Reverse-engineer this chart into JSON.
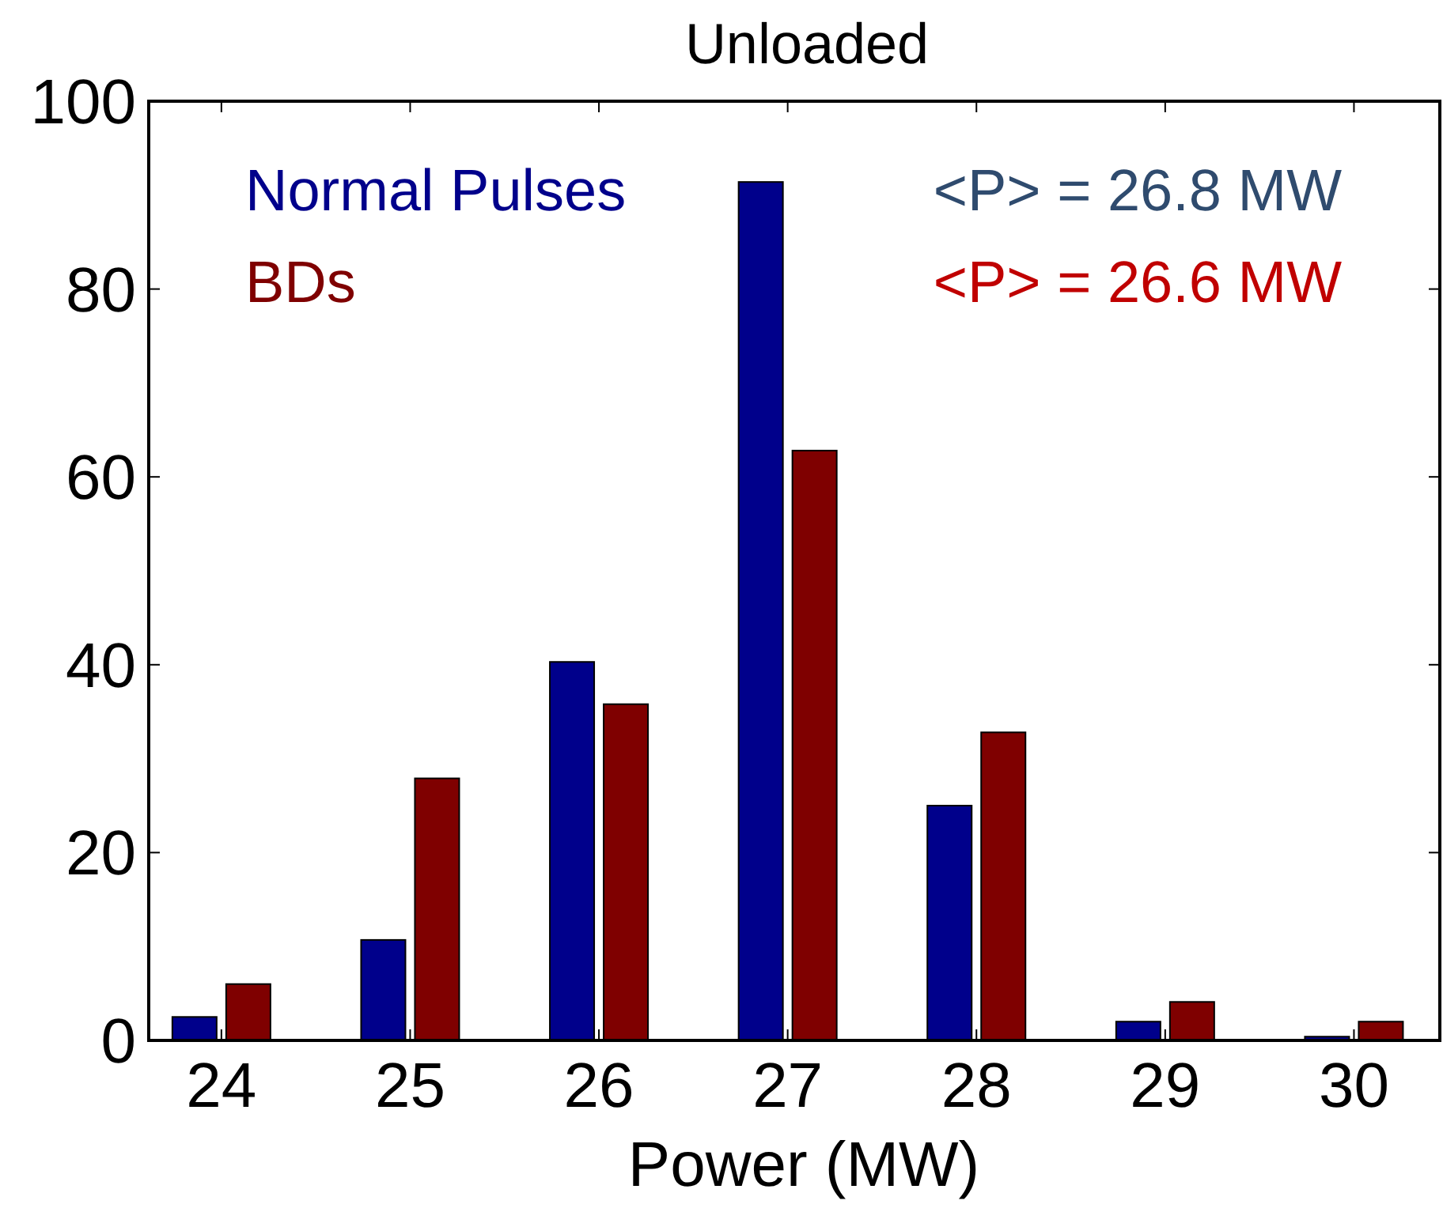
{
  "chart_data": {
    "type": "bar",
    "title": "Unloaded",
    "xlabel": "Power (MW)",
    "categories": [
      "24",
      "25",
      "26",
      "27",
      "28",
      "29",
      "30"
    ],
    "series": [
      {
        "name": "Normal Pulses",
        "color": "#00008b",
        "values": [
          2.5,
          10.7,
          40.3,
          91.4,
          25,
          2,
          0.4
        ]
      },
      {
        "name": "BDs",
        "color": "#7f0000",
        "values": [
          6,
          27.9,
          35.8,
          62.8,
          32.8,
          4.1,
          2
        ]
      }
    ],
    "ylim": [
      0,
      100
    ],
    "yticks": [
      0,
      20,
      40,
      60,
      80,
      100
    ],
    "grid": false,
    "legend": "top left",
    "annotations": [
      "<P> = 26.8 MW",
      "<P> = 26.6 MW"
    ]
  }
}
